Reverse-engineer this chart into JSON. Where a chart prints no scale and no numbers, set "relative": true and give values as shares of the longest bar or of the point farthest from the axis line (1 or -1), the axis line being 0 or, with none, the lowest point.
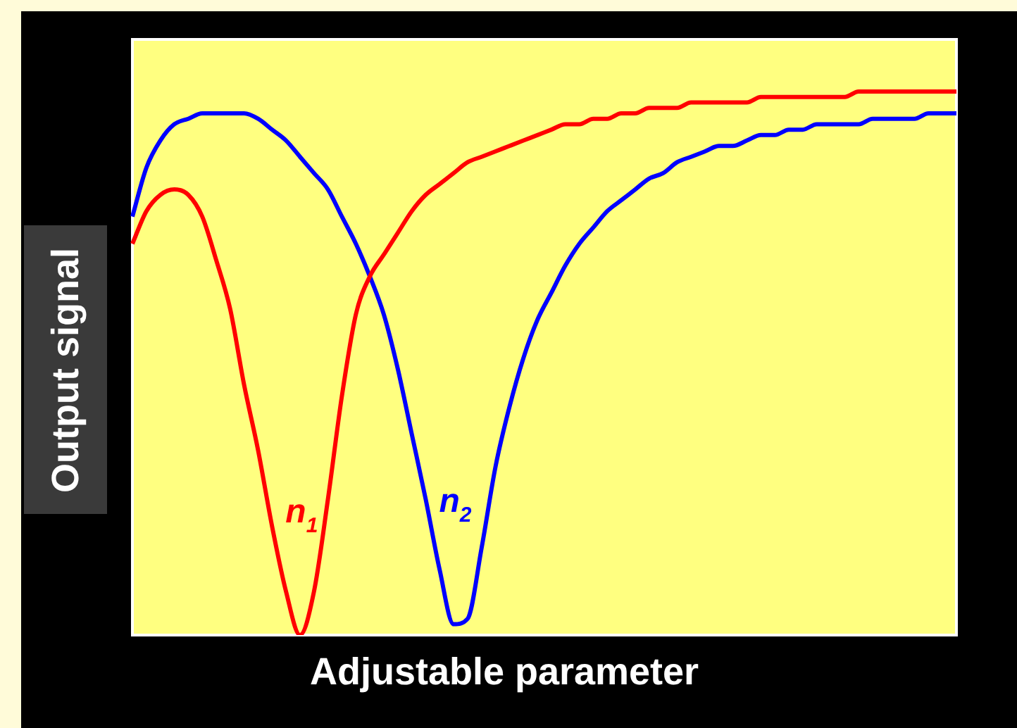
{
  "chart_data": {
    "type": "line",
    "relative": true,
    "xlabel": "Adjustable parameter",
    "ylabel": "Output signal",
    "legend": false,
    "grid": false,
    "marker": "none",
    "line_style": "solid",
    "categories": [
      null,
      null,
      null,
      null,
      null,
      null,
      null,
      null,
      null,
      null,
      null,
      null,
      null,
      null,
      null,
      null,
      null,
      null,
      null,
      null,
      null,
      null,
      null,
      null,
      null,
      null,
      null,
      null,
      null,
      null,
      null,
      null,
      null,
      null,
      null,
      null,
      null,
      null,
      null,
      null,
      null,
      null,
      null,
      null,
      null,
      null,
      null,
      null,
      null,
      null,
      null,
      null,
      null,
      null,
      null,
      null,
      null,
      null,
      null,
      null
    ],
    "series": [
      {
        "name": "n$_{1}$",
        "color": "#ff0000",
        "values": [
          0.72,
          0.78,
          0.81,
          0.82,
          0.81,
          0.77,
          0.69,
          0.6,
          0.46,
          0.34,
          0.2,
          0.08,
          0,
          0.08,
          0.25,
          0.44,
          0.59,
          0.66,
          0.7,
          0.74,
          0.78,
          0.81,
          0.83,
          0.85,
          0.87,
          0.88,
          0.89,
          0.9,
          0.91,
          0.92,
          0.93,
          0.94,
          0.94,
          0.95,
          0.95,
          0.96,
          0.96,
          0.97,
          0.97,
          0.97,
          0.98,
          0.98,
          0.98,
          0.98,
          0.98,
          0.99,
          0.99,
          0.99,
          0.99,
          0.99,
          0.99,
          0.99,
          1,
          1,
          1,
          1,
          1,
          1,
          1,
          1
        ]
      },
      {
        "name": "n$_{2}$",
        "color": "#0000ff",
        "values": [
          0.77,
          0.86,
          0.91,
          0.94,
          0.95,
          0.96,
          0.96,
          0.96,
          0.96,
          0.95,
          0.93,
          0.91,
          0.88,
          0.85,
          0.82,
          0.77,
          0.72,
          0.66,
          0.59,
          0.49,
          0.37,
          0.25,
          0.12,
          0.02,
          0.03,
          0.16,
          0.31,
          0.42,
          0.51,
          0.58,
          0.63,
          0.68,
          0.72,
          0.75,
          0.78,
          0.8,
          0.82,
          0.84,
          0.85,
          0.87,
          0.88,
          0.89,
          0.9,
          0.9,
          0.91,
          0.92,
          0.92,
          0.93,
          0.93,
          0.94,
          0.94,
          0.94,
          0.94,
          0.95,
          0.95,
          0.95,
          0.95,
          0.96,
          0.96,
          0.96
        ]
      }
    ]
  }
}
